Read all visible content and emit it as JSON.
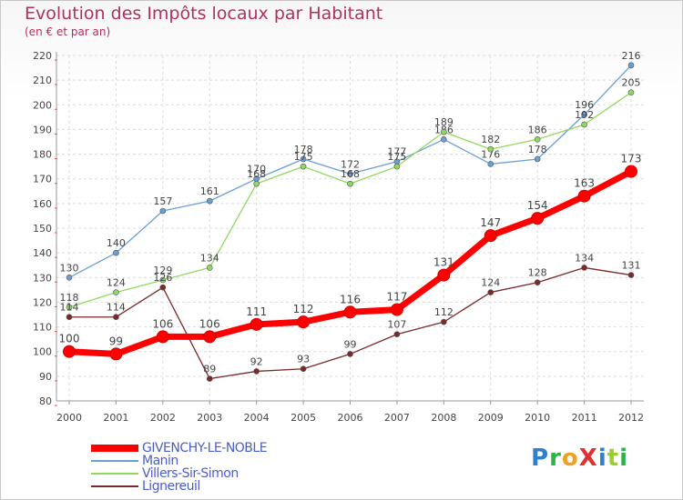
{
  "header": {
    "title": "Evolution des Impôts locaux par Habitant",
    "subtitle": "(en € et par an)"
  },
  "logo": {
    "text": "ProXiti",
    "letters": [
      {
        "ch": "P",
        "color": "#2d7fd0"
      },
      {
        "ch": "r",
        "color": "#2db34a"
      },
      {
        "ch": "o",
        "color": "#f0a020"
      },
      {
        "ch": "X",
        "color": "#e03030"
      },
      {
        "ch": "i",
        "color": "#2d7fd0"
      },
      {
        "ch": "t",
        "color": "#9acd32"
      },
      {
        "ch": "i",
        "color": "#2db34a"
      }
    ]
  },
  "chart_data": {
    "type": "line",
    "title": "Evolution des Impôts locaux par Habitant",
    "subtitle": "(en € et par an)",
    "xlabel": "",
    "ylabel": "",
    "x": [
      "2000",
      "2001",
      "2002",
      "2003",
      "2004",
      "2005",
      "2006",
      "2007",
      "2008",
      "2009",
      "2010",
      "2011",
      "2012"
    ],
    "ylim": [
      80,
      220
    ],
    "yticks": [
      80,
      90,
      100,
      110,
      120,
      130,
      140,
      150,
      160,
      170,
      180,
      190,
      200,
      210,
      220
    ],
    "grid": true,
    "legend_position": "bottom-left",
    "series": [
      {
        "name": "GIVENCHY-LE-NOBLE",
        "color": "#ff0000",
        "values": [
          100,
          99,
          106,
          106,
          111,
          112,
          116,
          117,
          131,
          147,
          154,
          163,
          173
        ]
      },
      {
        "name": "Manin",
        "color": "#6a9fd4",
        "values": [
          130,
          140,
          157,
          161,
          170,
          178,
          172,
          177,
          186,
          176,
          178,
          196,
          216
        ]
      },
      {
        "name": "Villers-Sir-Simon",
        "color": "#90d860",
        "values": [
          118,
          124,
          129,
          134,
          168,
          175,
          168,
          175,
          189,
          182,
          186,
          192,
          205
        ]
      },
      {
        "name": "Lignereuil",
        "color": "#7a2a2a",
        "values": [
          114,
          114,
          126,
          89,
          92,
          93,
          99,
          107,
          112,
          124,
          128,
          134,
          131
        ]
      }
    ]
  }
}
